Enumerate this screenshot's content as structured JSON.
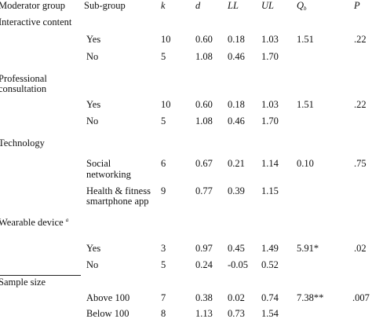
{
  "header": {
    "moderator": "Moderator group",
    "subgroup": "Sub-group",
    "k": "k",
    "d": "d",
    "ll": "LL",
    "ul": "UL",
    "qb": "Q",
    "qb_sub": "b",
    "p": "P"
  },
  "groups": [
    {
      "label_lines": [
        "Interactive content"
      ],
      "rows": [
        {
          "sub": [
            "Yes"
          ],
          "k": "10",
          "d": "0.60",
          "ll": "0.18",
          "ul": "1.03",
          "qb": "1.51",
          "p": ".22"
        },
        {
          "sub": [
            "No"
          ],
          "k": "5",
          "d": "1.08",
          "ll": "0.46",
          "ul": "1.70",
          "qb": "",
          "p": ""
        }
      ]
    },
    {
      "label_lines": [
        "Professional",
        "consultation"
      ],
      "rows": [
        {
          "sub": [
            "Yes"
          ],
          "k": "10",
          "d": "0.60",
          "ll": "0.18",
          "ul": "1.03",
          "qb": "1.51",
          "p": ".22"
        },
        {
          "sub": [
            "No"
          ],
          "k": "5",
          "d": "1.08",
          "ll": "0.46",
          "ul": "1.70",
          "qb": "",
          "p": ""
        }
      ]
    },
    {
      "label_lines": [
        "Technology"
      ],
      "rows": [
        {
          "sub": [
            "Social",
            "networking"
          ],
          "k": "6",
          "d": "0.67",
          "ll": "0.21",
          "ul": "1.14",
          "qb": "0.10",
          "p": ".75"
        },
        {
          "sub": [
            "Health & fitness",
            "smartphone app"
          ],
          "k": "9",
          "d": "0.77",
          "ll": "0.39",
          "ul": "1.15",
          "qb": "",
          "p": ""
        }
      ]
    },
    {
      "label_lines": [
        "Wearable device"
      ],
      "label_sup": "a",
      "rows": [
        {
          "sub": [
            "Yes"
          ],
          "k": "3",
          "d": "0.97",
          "ll": "0.45",
          "ul": "1.49",
          "qb": "5.91*",
          "p": ".02"
        },
        {
          "sub": [
            "No"
          ],
          "k": "5",
          "d": "0.24",
          "ll": "-0.05",
          "ul": "0.52",
          "qb": "",
          "p": ""
        }
      ]
    },
    {
      "label_lines": [
        "Sample size"
      ],
      "rows": [
        {
          "sub": [
            "Above 100"
          ],
          "k": "7",
          "d": "0.38",
          "ll": "0.02",
          "ul": "0.74",
          "qb": "7.38**",
          "p": ".007"
        },
        {
          "sub": [
            "Below 100"
          ],
          "k": "8",
          "d": "1.13",
          "ll": "0.73",
          "ul": "1.54",
          "qb": "",
          "p": ""
        }
      ]
    }
  ]
}
